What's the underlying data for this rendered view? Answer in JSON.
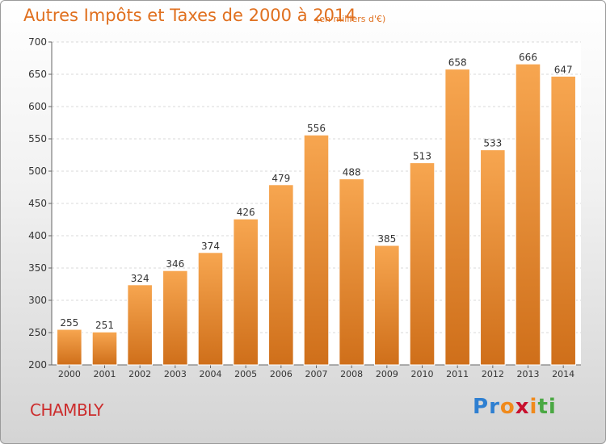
{
  "header": {
    "title": "Autres Impôts et Taxes de 2000 à 2014",
    "subtitle": "(en milliers d'€)"
  },
  "footer": {
    "commune": "CHAMBLY",
    "logo": "Proxiti"
  },
  "colors": {
    "title": "#e0701f",
    "commune": "#cc2d2d",
    "bar_light": "#f7a650",
    "bar_dark": "#cf6f1a",
    "logo_letters": [
      "#2e7fd1",
      "#2e7fd1",
      "#f08a1c",
      "#c8102e",
      "#f08a1c",
      "#4aa843",
      "#4aa843"
    ]
  },
  "chart_data": {
    "type": "bar",
    "title": "Autres Impôts et Taxes de 2000 à 2014",
    "subtitle": "(en milliers d'€)",
    "categories": [
      "2000",
      "2001",
      "2002",
      "2003",
      "2004",
      "2005",
      "2006",
      "2007",
      "2008",
      "2009",
      "2010",
      "2011",
      "2012",
      "2013",
      "2014"
    ],
    "values": [
      255,
      251,
      324,
      346,
      374,
      426,
      479,
      556,
      488,
      385,
      513,
      658,
      533,
      666,
      647
    ],
    "ylim": [
      200,
      700
    ],
    "yticks": [
      200,
      250,
      300,
      350,
      400,
      450,
      500,
      550,
      600,
      650,
      700
    ],
    "grid": true
  }
}
